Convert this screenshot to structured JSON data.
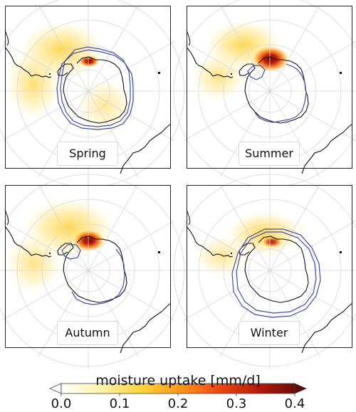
{
  "panels": [
    {
      "label": "Spring",
      "hotspot_intensity": 0.25,
      "sea_ice_contours": 2
    },
    {
      "label": "Summer",
      "hotspot_intensity": 0.4,
      "sea_ice_contours": 2
    },
    {
      "label": "Autumn",
      "hotspot_intensity": 0.35,
      "sea_ice_contours": 2
    },
    {
      "label": "Winter",
      "hotspot_intensity": 0.25,
      "sea_ice_contours": 2
    }
  ],
  "colorbar": {
    "title": "moisture uptake [mm/d]",
    "min": 0.0,
    "max": 0.4,
    "extend": "both",
    "ticks": [
      "0.0",
      "0.1",
      "0.2",
      "0.3",
      "0.4"
    ],
    "colors": [
      "#ffffff",
      "#fff3a8",
      "#ffd43b",
      "#ff9a1a",
      "#f04a12",
      "#b81b0b",
      "#6b0d05"
    ]
  },
  "colors": {
    "coastline": "#111111",
    "sea_ice_contour": "#3f4fa8",
    "gridlines": "#d8d8d8"
  }
}
